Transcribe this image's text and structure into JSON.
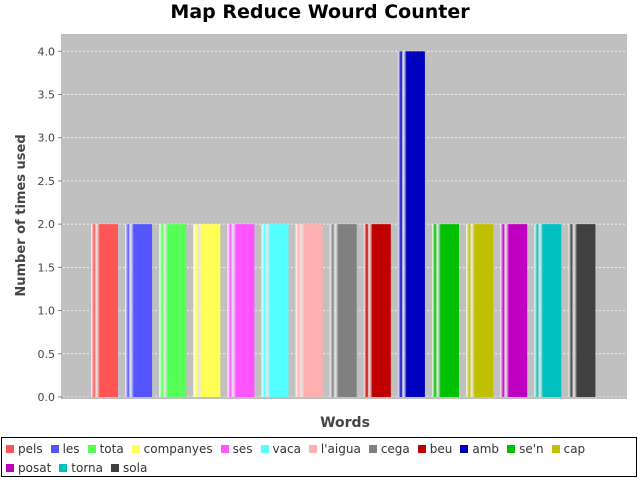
{
  "chart_data": {
    "type": "bar",
    "title": "Map Reduce Wourd Counter",
    "xlabel": "Words",
    "ylabel": "Number of times used",
    "ylim": [
      0,
      4.2
    ],
    "yticks": [
      "0.0",
      "0.5",
      "1.0",
      "1.5",
      "2.0",
      "2.5",
      "3.0",
      "3.5",
      "4.0"
    ],
    "grid": true,
    "legend_position": "bottom",
    "plot_background": "#c0c0c0",
    "series": [
      {
        "name": "pels",
        "value": 2,
        "color": "#ff5555"
      },
      {
        "name": "les",
        "value": 2,
        "color": "#5555ff"
      },
      {
        "name": "tota",
        "value": 2,
        "color": "#55ff55"
      },
      {
        "name": "companyes",
        "value": 2,
        "color": "#ffff55"
      },
      {
        "name": "ses",
        "value": 2,
        "color": "#ff55ff"
      },
      {
        "name": "vaca",
        "value": 2,
        "color": "#55ffff"
      },
      {
        "name": "l'aigua",
        "value": 2,
        "color": "#ffafaf"
      },
      {
        "name": "cega",
        "value": 2,
        "color": "#808080"
      },
      {
        "name": "beu",
        "value": 2,
        "color": "#c00000"
      },
      {
        "name": "amb",
        "value": 4,
        "color": "#0000c0"
      },
      {
        "name": "se'n",
        "value": 2,
        "color": "#00c000"
      },
      {
        "name": "cap",
        "value": 2,
        "color": "#c0c000"
      },
      {
        "name": "posat",
        "value": 2,
        "color": "#c000c0"
      },
      {
        "name": "torna",
        "value": 2,
        "color": "#00c0c0"
      },
      {
        "name": "sola",
        "value": 2,
        "color": "#404040"
      }
    ]
  }
}
